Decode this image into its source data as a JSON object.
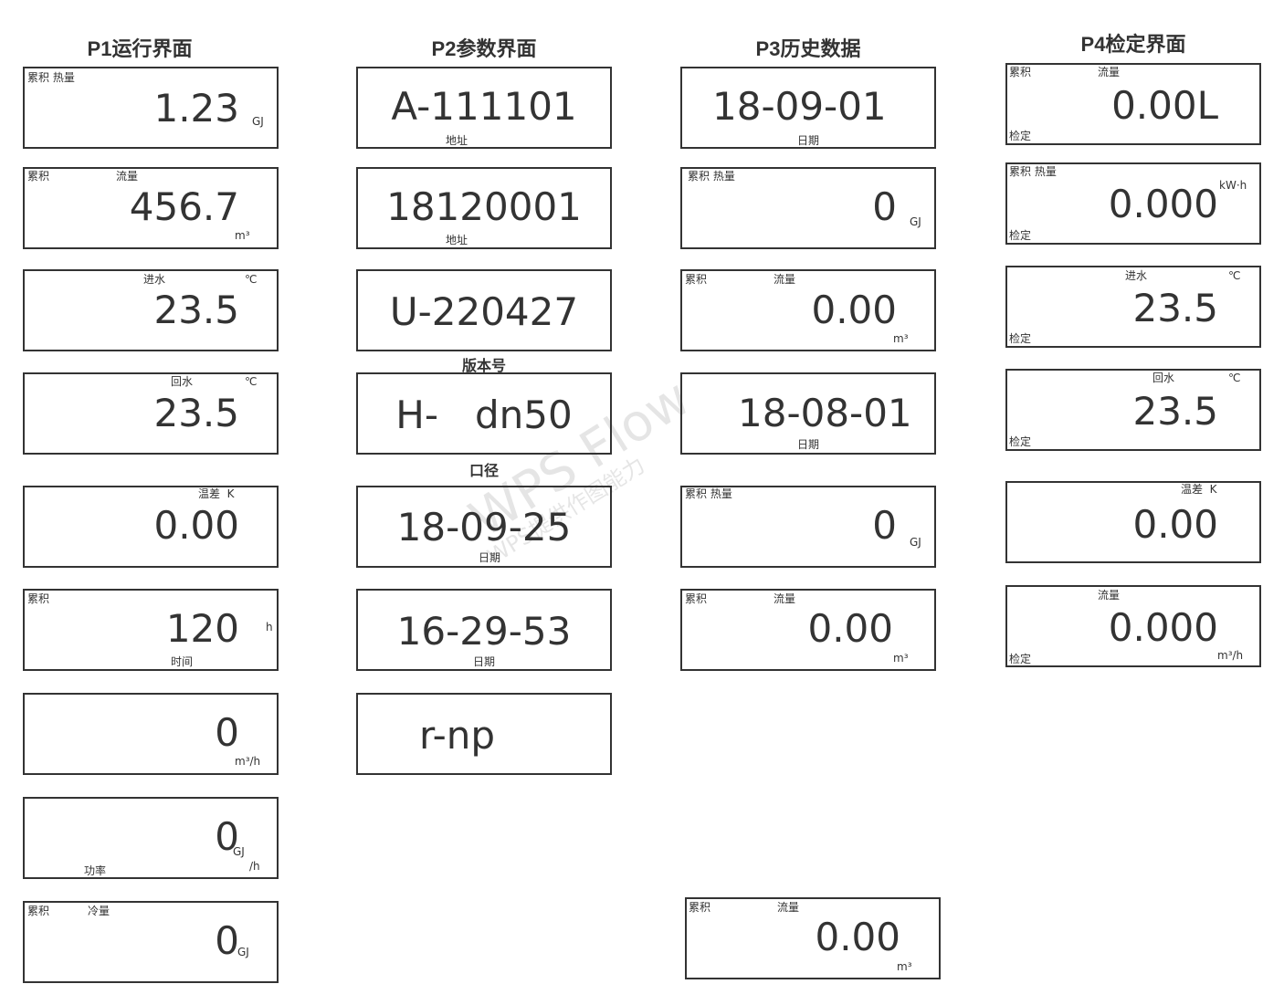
{
  "columns": [
    {
      "title": "P1运行界面",
      "panels": [
        {
          "value": "1.23",
          "labels": [
            "累积 热量",
            "GJ"
          ]
        },
        {
          "value": "456.7",
          "labels": [
            "累积",
            "流量",
            "m³"
          ]
        },
        {
          "value": "23.5",
          "labels": [
            "进水",
            "℃"
          ]
        },
        {
          "value": "23.5",
          "labels": [
            "回水",
            "℃"
          ]
        },
        {
          "value": "0.00",
          "labels": [
            "温差  K"
          ]
        },
        {
          "value": "120",
          "labels": [
            "累积",
            "h",
            "时间"
          ]
        },
        {
          "value": "0",
          "labels": [
            "m³/h"
          ]
        },
        {
          "value": "0",
          "labels": [
            "GJ",
            "/h",
            "功率"
          ]
        },
        {
          "value": "0",
          "labels": [
            "累积",
            "冷量",
            "GJ"
          ]
        }
      ]
    },
    {
      "title": "P2参数界面",
      "notes": [
        "版本号",
        "口径"
      ],
      "panels": [
        {
          "value": "A-111101",
          "labels": [
            "地址"
          ]
        },
        {
          "value": "18120001",
          "labels": [
            "地址"
          ]
        },
        {
          "value": "U-220427",
          "labels": []
        },
        {
          "value": "H-   dn50",
          "labels": []
        },
        {
          "value": "18-09-25",
          "labels": [
            "日期"
          ]
        },
        {
          "value": "16-29-53",
          "labels": [
            "日期"
          ]
        },
        {
          "value": "r-np",
          "labels": []
        }
      ]
    },
    {
      "title": "P3历史数据",
      "panels": [
        {
          "value": "18-09-01",
          "labels": [
            "日期"
          ]
        },
        {
          "value": "0",
          "labels": [
            "累积 热量",
            "GJ"
          ]
        },
        {
          "value": "0.00",
          "labels": [
            "累积",
            "流量",
            "m³"
          ]
        },
        {
          "value": "18-08-01",
          "labels": [
            "日期"
          ]
        },
        {
          "value": "0",
          "labels": [
            "累积 热量",
            "GJ"
          ]
        },
        {
          "value": "0.00",
          "labels": [
            "累积",
            "流量",
            "m³"
          ]
        },
        {
          "value": "0.00",
          "labels": [
            "累积",
            "流量",
            "m³"
          ]
        }
      ]
    },
    {
      "title": "P4检定界面",
      "panels": [
        {
          "value": "0.00L",
          "labels": [
            "累积",
            "流量",
            "检定"
          ]
        },
        {
          "value": "0.000",
          "labels": [
            "累积 热量",
            "kW·h",
            "检定"
          ]
        },
        {
          "value": "23.5",
          "labels": [
            "进水",
            "℃",
            "检定"
          ]
        },
        {
          "value": "23.5",
          "labels": [
            "回水",
            "℃",
            "检定"
          ]
        },
        {
          "value": "0.00",
          "labels": [
            "温差  K"
          ]
        },
        {
          "value": "0.000",
          "labels": [
            "流量",
            "m³/h",
            "检定"
          ]
        }
      ]
    }
  ],
  "watermark": [
    "WPS Flow",
    "WPS提供作图能力"
  ]
}
